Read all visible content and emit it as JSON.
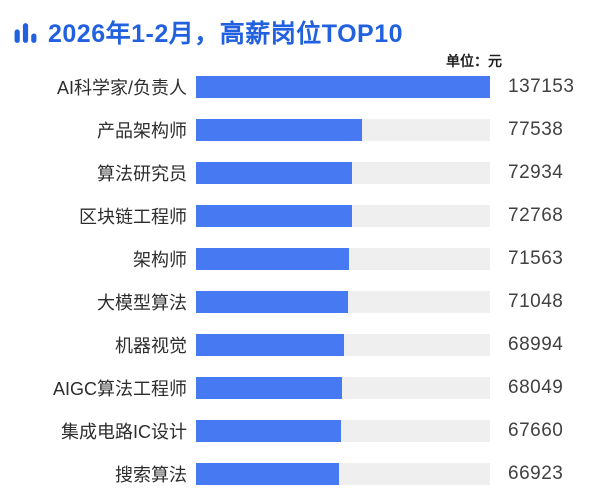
{
  "header": {
    "title": "2026年1-2月，高薪岗位TOP10",
    "unit_label": "单位：元",
    "icon": "bar-chart-icon"
  },
  "colors": {
    "title_blue": "#2161E0",
    "bar_blue": "#4679F2",
    "track_gray": "#EFEFEF",
    "label_text": "#2d2d2d",
    "value_text": "#414141"
  },
  "chart_data": {
    "type": "bar",
    "orientation": "horizontal",
    "title": "2026年1-2月，高薪岗位TOP10",
    "unit": "元",
    "categories": [
      "AI科学家/负责人",
      "产品架构师",
      "算法研究员",
      "区块链工程师",
      "架构师",
      "大模型算法",
      "机器视觉",
      "AIGC算法工程师",
      "集成电路IC设计",
      "搜索算法"
    ],
    "values": [
      137153,
      77538,
      72934,
      72768,
      71563,
      71048,
      68994,
      68049,
      67660,
      66923
    ],
    "xlim": [
      0,
      137153
    ],
    "grid": false,
    "legend": false
  }
}
